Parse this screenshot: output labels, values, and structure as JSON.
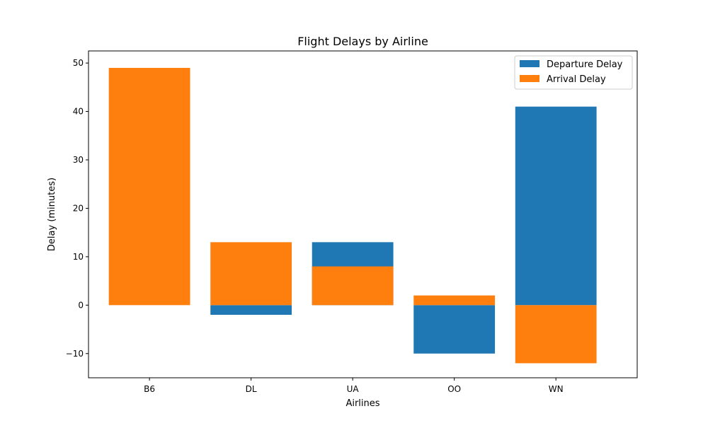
{
  "chart_data": {
    "type": "bar",
    "title": "Flight Delays by Airline",
    "xlabel": "Airlines",
    "ylabel": "Delay (minutes)",
    "categories": [
      "B6",
      "DL",
      "UA",
      "OO",
      "WN"
    ],
    "series": [
      {
        "name": "Departure Delay",
        "values": [
          0,
          -2,
          13,
          -10,
          41
        ],
        "color": "#1f77b4"
      },
      {
        "name": "Arrival Delay",
        "values": [
          49,
          13,
          8,
          2,
          -12
        ],
        "color": "#ff7f0e"
      }
    ],
    "ylim": [
      -15,
      52.5
    ],
    "yticks": [
      -10,
      0,
      10,
      20,
      30,
      40,
      50
    ],
    "grid": false,
    "legend_position": "top-right",
    "overlapping_bars": true
  }
}
